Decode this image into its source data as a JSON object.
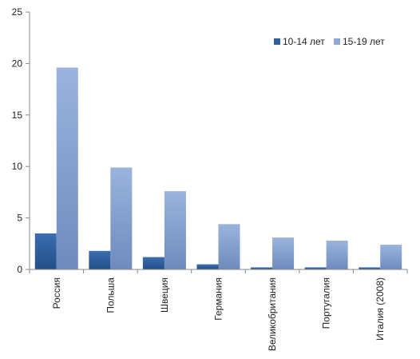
{
  "chart_data": {
    "type": "bar",
    "categories": [
      "Россия",
      "Польша",
      "Швеция",
      "Германия",
      "Великобритания",
      "Португалия",
      "Италия (2008)"
    ],
    "series": [
      {
        "name": "10-14 лет",
        "values": [
          3.5,
          1.8,
          1.2,
          0.5,
          0.2,
          0.2,
          0.2
        ],
        "color": "#2e5f9e"
      },
      {
        "name": "15-19 лет",
        "values": [
          19.6,
          9.9,
          7.6,
          4.4,
          3.1,
          2.8,
          2.4
        ],
        "color": "#8ea9d6"
      }
    ],
    "ylim": [
      0,
      25
    ],
    "yticks": [
      "0",
      "5",
      "10",
      "15",
      "20",
      "25"
    ],
    "legend_position": "top-right",
    "grid": false
  }
}
